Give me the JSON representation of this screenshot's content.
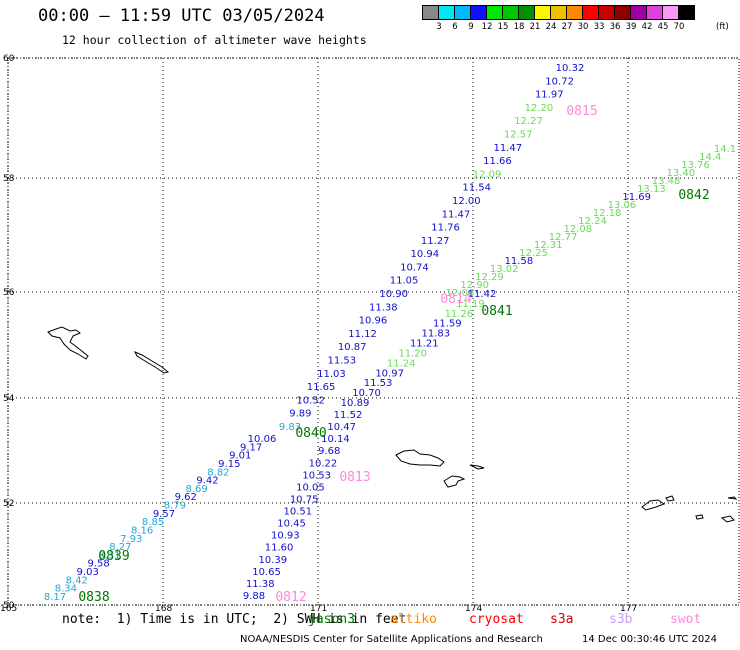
{
  "header": {
    "title": "00:00 – 11:59 UTC 03/05/2024",
    "subtitle": "12 hour collection of altimeter wave heights"
  },
  "colorbar": {
    "unit": "(ft)",
    "colors": [
      "#888888",
      "#00e8f0",
      "#00b8ff",
      "#1010ff",
      "#00e800",
      "#00c800",
      "#009000",
      "#f8f800",
      "#f0c000",
      "#ff8800",
      "#ff0000",
      "#c80000",
      "#900000",
      "#a000a0",
      "#e040e0",
      "#f898f8",
      "#000000"
    ],
    "labels": [
      "3",
      "6",
      "9",
      "12",
      "15",
      "18",
      "21",
      "24",
      "27",
      "30",
      "33",
      "36",
      "39",
      "42",
      "45",
      "70"
    ]
  },
  "map": {
    "lon_ticks": [
      "165",
      "168",
      "171",
      "174",
      "177"
    ],
    "lat_ticks": [
      "60",
      "58",
      "56",
      "54",
      "52",
      "50"
    ],
    "tracks": [
      {
        "time_label": "0815",
        "time_color": "#ff88dd",
        "values": [
          "10.32",
          "10.72",
          "11.97",
          "12.20",
          "12.27",
          "12.57",
          "11.47",
          "11.66",
          "12.09",
          "11.54",
          "12.00",
          "11.47",
          "11.76",
          "11.27",
          "10.94",
          "10.74",
          "11.05",
          "10.90",
          "11.38",
          "10.96",
          "11.12",
          "10.87",
          "11.53",
          "11.03",
          "11.65",
          "10.52",
          "9.89",
          "9.83",
          "10.06",
          "9.17",
          "9.01",
          "9.15",
          "8.82",
          "9.42",
          "8.69",
          "9.62",
          "8.79",
          "9.57",
          "8.85",
          "8.16",
          "7.93",
          "8.27",
          "8.31",
          "9.58",
          "9.03",
          "8.42",
          "8.34",
          "8.17"
        ],
        "colors": [
          "b",
          "b",
          "b",
          "g",
          "g",
          "g",
          "b",
          "b",
          "g",
          "b",
          "b",
          "b",
          "b",
          "b",
          "b",
          "b",
          "b",
          "b",
          "b",
          "b",
          "b",
          "b",
          "b",
          "b",
          "b",
          "b",
          "b",
          "c",
          "b",
          "b",
          "b",
          "b",
          "c",
          "b",
          "c",
          "b",
          "c",
          "b",
          "c",
          "c",
          "c",
          "c",
          "c",
          "b",
          "b",
          "c",
          "c",
          "c"
        ]
      },
      {
        "time_label": "0842",
        "time_color": "#007700",
        "values": [
          "14.1",
          "14.4",
          "13.76",
          "13.40",
          "13.48",
          "13.13",
          "11.69",
          "13.06",
          "12.18",
          "12.24",
          "12.08",
          "12.77",
          "12.31",
          "12.25",
          "11.58",
          "13.02",
          "12.29",
          "12.90",
          "12.06",
          "11.42",
          "11.19",
          "11.26",
          "11.59",
          "11.83",
          "11.21",
          "11.20",
          "11.24",
          "10.97",
          "11.53",
          "10.70",
          "10.89",
          "11.52",
          "10.47",
          "10.14",
          "9.68",
          "10.22",
          "10.53",
          "10.05",
          "10.75",
          "10.51",
          "10.45",
          "10.93",
          "11.60",
          "10.39",
          "10.65",
          "11.38",
          "9.88"
        ],
        "colors": [
          "g",
          "g",
          "g",
          "g",
          "g",
          "g",
          "b",
          "g",
          "g",
          "g",
          "g",
          "g",
          "g",
          "g",
          "b",
          "g",
          "g",
          "g",
          "g",
          "b",
          "g",
          "g",
          "b",
          "b",
          "b",
          "g",
          "g",
          "b",
          "b",
          "b",
          "b",
          "b",
          "b",
          "b",
          "b",
          "b",
          "b",
          "b",
          "b",
          "b",
          "b",
          "b",
          "b",
          "b",
          "b",
          "b",
          "b"
        ]
      }
    ],
    "pass_labels": [
      {
        "text": "0815",
        "color": "#ff88dd"
      },
      {
        "text": "0842",
        "color": "#007700"
      },
      {
        "text": "0814",
        "color": "#ff88dd"
      },
      {
        "text": "0841",
        "color": "#007700"
      },
      {
        "text": "0840",
        "color": "#007700"
      },
      {
        "text": "0813",
        "color": "#ff88dd"
      },
      {
        "text": "0839",
        "color": "#007700"
      },
      {
        "text": "0838",
        "color": "#007700"
      },
      {
        "text": "0812",
        "color": "#ff88dd"
      }
    ]
  },
  "note": {
    "text": "note:  1) Time is in UTC;  2) SWH is in feet"
  },
  "missions": [
    {
      "name": "jason3",
      "color": "#007700"
    },
    {
      "name": "altiko",
      "color": "#ff8800"
    },
    {
      "name": "cryosat",
      "color": "#ff0000"
    },
    {
      "name": "s3a",
      "color": "#cc0000"
    },
    {
      "name": "s3b",
      "color": "#c8a0f0"
    },
    {
      "name": "swot",
      "color": "#ff88dd"
    }
  ],
  "footer": {
    "center": "NOAA/NESDIS Center for Satellite Applications and Research",
    "timestamp": "14 Dec 00:30:46 UTC 2024"
  }
}
